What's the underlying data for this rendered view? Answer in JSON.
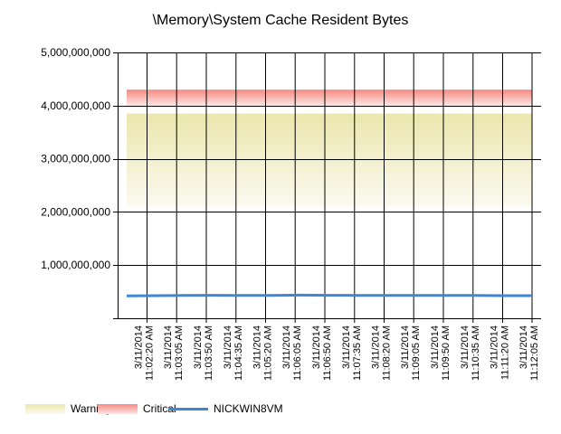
{
  "chart_data": {
    "type": "line",
    "title": "\\Memory\\System Cache Resident Bytes",
    "xlabel": "",
    "ylabel": "",
    "ylim": [
      0,
      5000000000
    ],
    "y_ticks": [
      1000000000,
      2000000000,
      3000000000,
      4000000000,
      5000000000
    ],
    "y_tick_labels": [
      "1,000,000,000",
      "2,000,000,000",
      "3,000,000,000",
      "4,000,000,000",
      "5,000,000,000"
    ],
    "x_tick_labels": [
      [
        "3/11/2014",
        "11:02:20 AM"
      ],
      [
        "3/11/2014",
        "11:03:05 AM"
      ],
      [
        "3/11/2014",
        "11:03:50 AM"
      ],
      [
        "3/11/2014",
        "11:04:35 AM"
      ],
      [
        "3/11/2014",
        "11:05:20 AM"
      ],
      [
        "3/11/2014",
        "11:06:05 AM"
      ],
      [
        "3/11/2014",
        "11:06:50 AM"
      ],
      [
        "3/11/2014",
        "11:07:35 AM"
      ],
      [
        "3/11/2014",
        "11:08:20 AM"
      ],
      [
        "3/11/2014",
        "11:09:05 AM"
      ],
      [
        "3/11/2014",
        "11:09:50 AM"
      ],
      [
        "3/11/2014",
        "11:10:35 AM"
      ],
      [
        "3/11/2014",
        "11:11:20 AM"
      ],
      [
        "3/11/2014",
        "11:12:05 AM"
      ]
    ],
    "bands": [
      {
        "name": "Warning",
        "from": 2100000000,
        "to": 3850000000,
        "color": "#ebe6ad"
      },
      {
        "name": "Critical",
        "from": 4000000000,
        "to": 4300000000,
        "color": "#f58a82"
      }
    ],
    "series": [
      {
        "name": "NICKWIN8VM",
        "color": "#3f87d4",
        "values": [
          420000000,
          425000000,
          430000000,
          432000000,
          428000000,
          430000000,
          435000000,
          432000000,
          430000000,
          430000000,
          428000000,
          430000000,
          428000000,
          425000000,
          425000000
        ]
      }
    ],
    "grid": true,
    "legend_position": "bottom-left"
  },
  "legend": {
    "warning_label": "Warning",
    "critical_label": "Critical",
    "series_label": "NICKWIN8VM"
  }
}
